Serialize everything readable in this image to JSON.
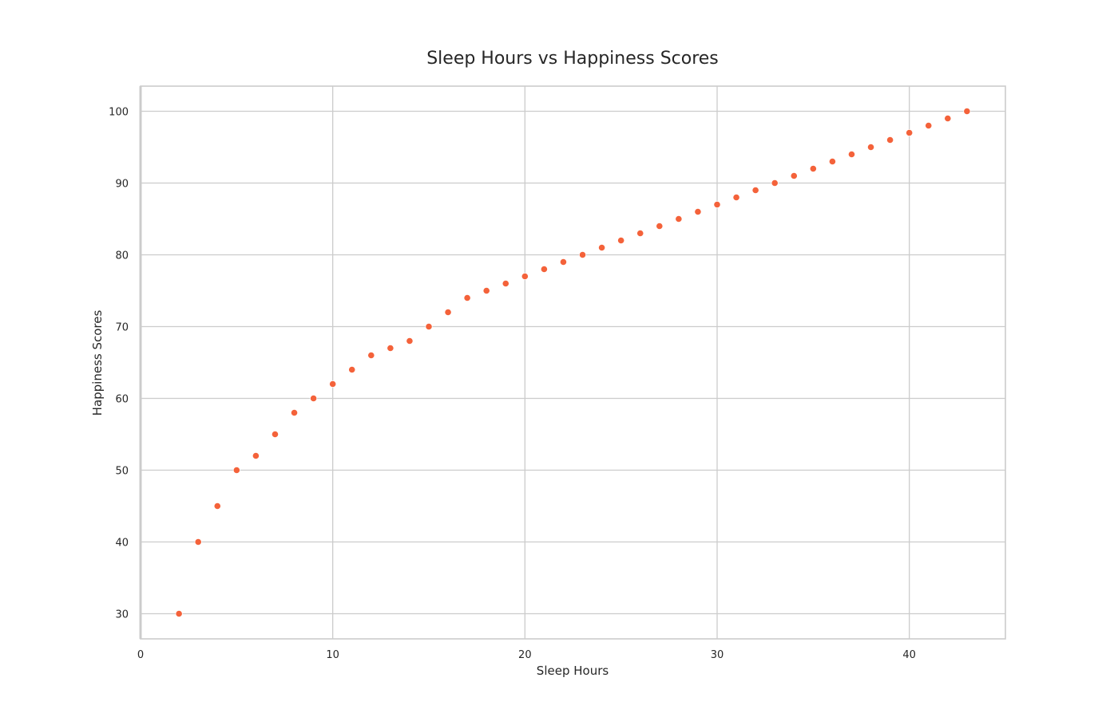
{
  "chart_data": {
    "type": "scatter",
    "title": "Sleep Hours vs Happiness Scores",
    "xlabel": "Sleep Hours",
    "ylabel": "Happiness Scores",
    "xlim": [
      0,
      45
    ],
    "ylim": [
      26.5,
      103.5
    ],
    "xticks": [
      0,
      10,
      20,
      30,
      40
    ],
    "yticks": [
      30,
      40,
      50,
      60,
      70,
      80,
      90,
      100
    ],
    "grid": true,
    "legend": "none",
    "series": [
      {
        "color": "#f4623a",
        "x": [
          2,
          3,
          4,
          5,
          6,
          7,
          8,
          9,
          10,
          11,
          12,
          13,
          14,
          15,
          16,
          17,
          18,
          19,
          20,
          21,
          22,
          23,
          24,
          25,
          26,
          27,
          28,
          29,
          30,
          31,
          32,
          33,
          34,
          35,
          36,
          37,
          38,
          39,
          40,
          41,
          42,
          43
        ],
        "y": [
          30,
          40,
          45,
          50,
          52,
          55,
          58,
          60,
          62,
          64,
          66,
          67,
          68,
          70,
          72,
          74,
          75,
          76,
          77,
          78,
          79,
          80,
          81,
          82,
          83,
          84,
          85,
          86,
          87,
          88,
          89,
          90,
          91,
          92,
          93,
          94,
          95,
          96,
          97,
          98,
          99,
          100
        ]
      }
    ]
  },
  "colors": {
    "grid": "#cccccc",
    "frame": "#cccccc",
    "point": "#f4623a"
  }
}
